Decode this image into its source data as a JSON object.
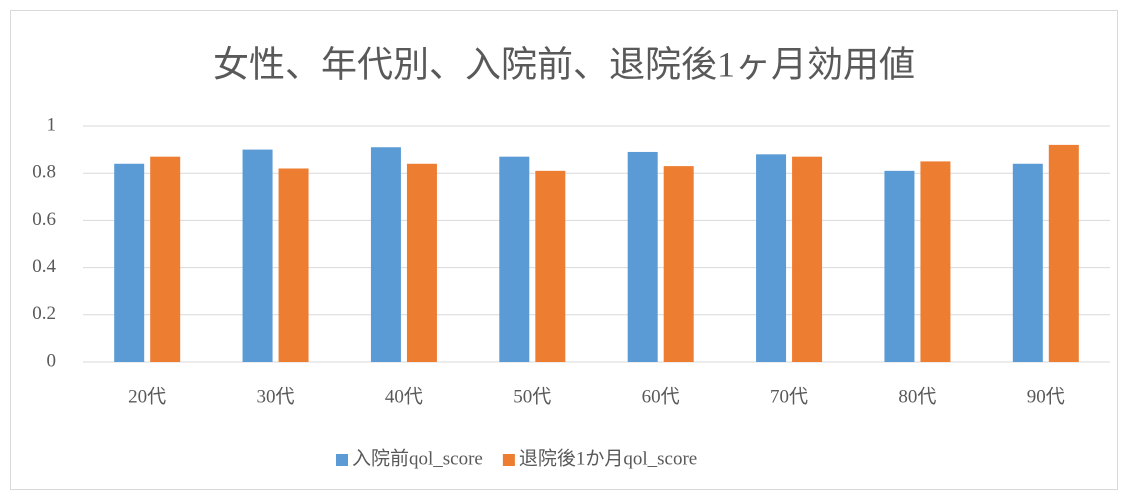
{
  "chart_data": {
    "type": "bar",
    "title": "女性、年代別、入院前、退院後1ヶ月効用値",
    "categories": [
      "20代",
      "30代",
      "40代",
      "50代",
      "60代",
      "70代",
      "80代",
      "90代"
    ],
    "series": [
      {
        "name": "入院前qol_score",
        "color": "#5b9bd5",
        "values": [
          0.84,
          0.9,
          0.91,
          0.87,
          0.89,
          0.88,
          0.81,
          0.84
        ]
      },
      {
        "name": "退院後1か月qol_score",
        "color": "#ed7d31",
        "values": [
          0.87,
          0.82,
          0.84,
          0.81,
          0.83,
          0.87,
          0.85,
          0.92
        ]
      }
    ],
    "ylim": [
      0,
      1
    ],
    "yticks": [
      0,
      0.2,
      0.4,
      0.6,
      0.8,
      1
    ],
    "grid": true,
    "legend": "bottom"
  }
}
